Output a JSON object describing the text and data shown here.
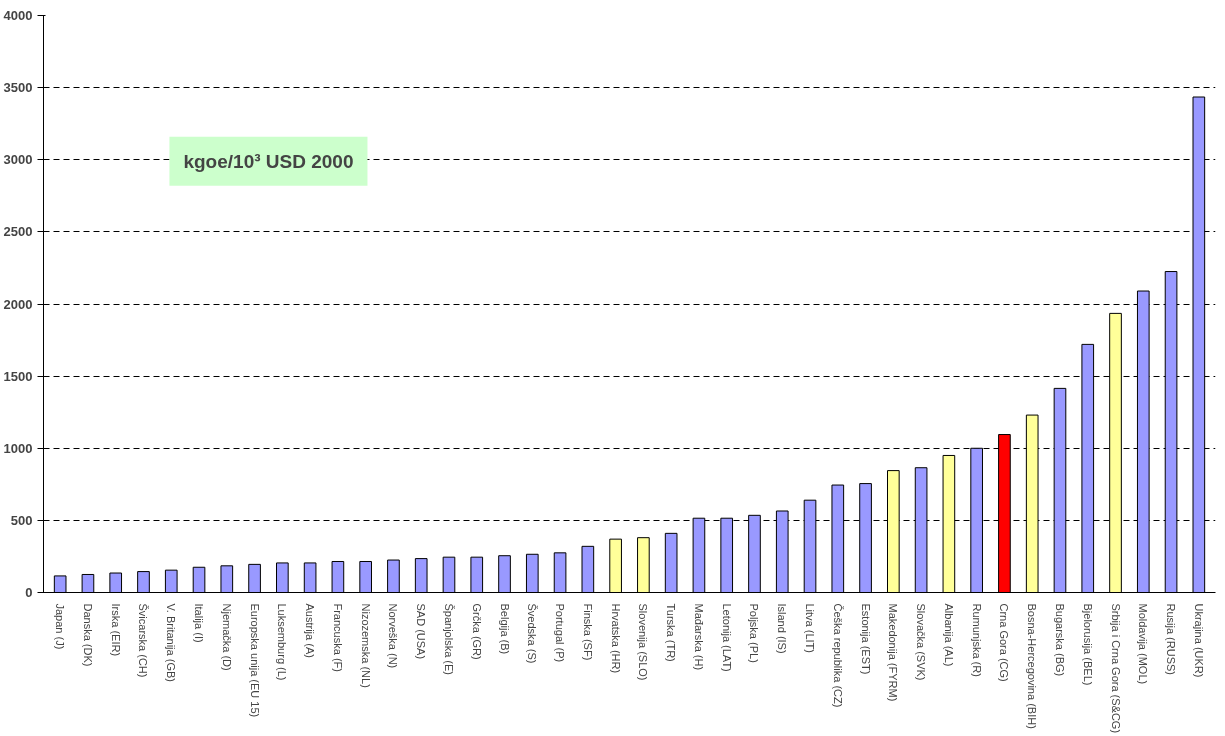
{
  "chart_data": {
    "type": "bar",
    "categories": [
      "Japan (J)",
      "Danska (DK)",
      "Irska (EIR)",
      "Švicarska (CH)",
      "V. Britanija (GB)",
      "Italija (I)",
      "Njemačka (D)",
      "Europska unija (EU 15)",
      "Luksemburg (L)",
      "Austrija (A)",
      "Francuska (F)",
      "Nizozemska (NL)",
      "Norveška (N)",
      "SAD (USA)",
      "Španjolska (E)",
      "Grčka (GR)",
      "Belgija (B)",
      "Švedska (S)",
      "Portugal (P)",
      "Finska (SF)",
      "Hrvatska (HR)",
      "Slovenija (SLO)",
      "Turska (TR)",
      "Mađarska (H)",
      "Letonija (LAT)",
      "Poljska (PL)",
      "Island (IS)",
      "Litva (LIT)",
      "Češka republika (CZ)",
      "Estonija (EST)",
      "Makedonija (FYRM)",
      "Slovačka (SVK)",
      "Albanija (AL)",
      "Rumunjska (R)",
      "Crna Gora (CG)",
      "Bosna-Hercegovina (BIH)",
      "Bugarska (BG)",
      "Bjelorusija (BEL)",
      "Srbija i Crna Gora (S&CG)",
      "Moldavija (MOL)",
      "Rusija (RUSS)",
      "Ukrajina (UKR)"
    ],
    "values": [
      115,
      125,
      135,
      145,
      155,
      175,
      185,
      195,
      205,
      205,
      215,
      215,
      225,
      235,
      245,
      245,
      255,
      265,
      275,
      320,
      370,
      380,
      410,
      515,
      515,
      535,
      565,
      640,
      745,
      755,
      845,
      865,
      950,
      1000,
      1095,
      1230,
      1415,
      1720,
      1935,
      2090,
      2225,
      3435
    ],
    "colors": [
      "#9999ff",
      "#9999ff",
      "#9999ff",
      "#9999ff",
      "#9999ff",
      "#9999ff",
      "#9999ff",
      "#9999ff",
      "#9999ff",
      "#9999ff",
      "#9999ff",
      "#9999ff",
      "#9999ff",
      "#9999ff",
      "#9999ff",
      "#9999ff",
      "#9999ff",
      "#9999ff",
      "#9999ff",
      "#9999ff",
      "#ffff99",
      "#ffff99",
      "#9999ff",
      "#9999ff",
      "#9999ff",
      "#9999ff",
      "#9999ff",
      "#9999ff",
      "#9999ff",
      "#9999ff",
      "#ffff99",
      "#9999ff",
      "#ffff99",
      "#9999ff",
      "#ff0000",
      "#ffff99",
      "#9999ff",
      "#9999ff",
      "#ffff99",
      "#9999ff",
      "#9999ff",
      "#9999ff"
    ],
    "ylim": [
      0,
      4000
    ],
    "yticks": [
      0,
      500,
      1000,
      1500,
      2000,
      2500,
      3000,
      3500,
      4000
    ],
    "grid": "y",
    "annotations": [
      "kgoe/10³ USD 2000"
    ]
  }
}
